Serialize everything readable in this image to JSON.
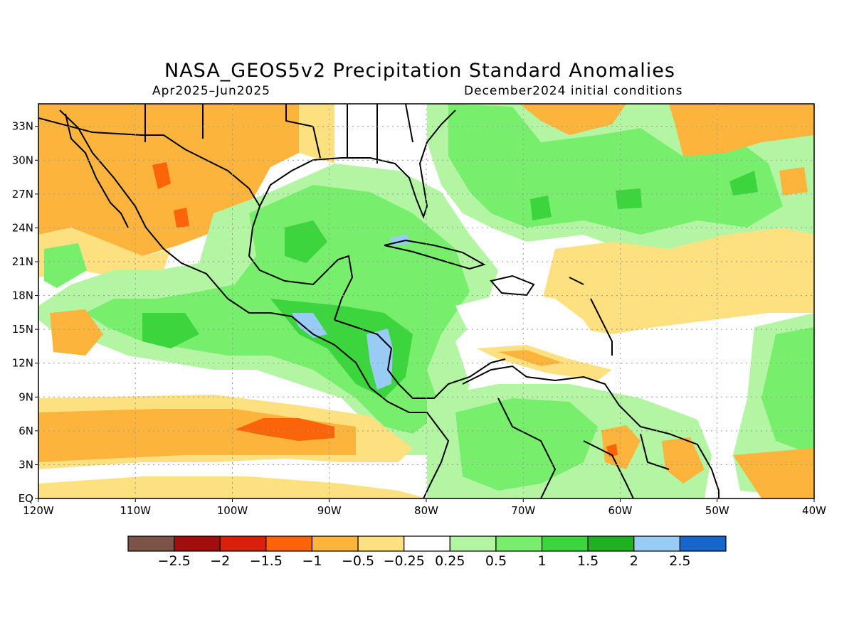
{
  "title": "NASA_GEOS5v2 Precipitation Standard Anomalies",
  "subtitle_left": "Apr2025–Jun2025",
  "subtitle_right": "December2024 initial conditions",
  "map": {
    "lon_labels": [
      "120W",
      "110W",
      "100W",
      "90W",
      "80W",
      "70W",
      "60W",
      "50W",
      "40W"
    ],
    "lat_labels": [
      "33N",
      "30N",
      "27N",
      "24N",
      "21N",
      "18N",
      "15N",
      "12N",
      "9N",
      "6N",
      "3N",
      "EQ"
    ],
    "lon_range": [
      -120,
      -40
    ],
    "lat_range": [
      0,
      35
    ],
    "grid": "dotted"
  },
  "colorbar": {
    "colors": [
      "#7b5347",
      "#a10e0e",
      "#d8200c",
      "#fb6408",
      "#fcb43c",
      "#fde07f",
      "#ffffff",
      "#b4f5a4",
      "#78ee6d",
      "#3cd53e",
      "#1fb11f",
      "#98ccf5",
      "#1666cc"
    ],
    "labels": [
      "−2.5",
      "−2",
      "−1.5",
      "−1",
      "−0.5",
      "−0.25",
      "0.25",
      "0.5",
      "1",
      "1.5",
      "2",
      "2.5"
    ]
  },
  "palette": {
    "neg_05": "#fde07f",
    "neg_1": "#fcb43c",
    "neg_15": "#fb6408",
    "pos_025": "#b4f5a4",
    "pos_05": "#78ee6d",
    "pos_1": "#3cd53e",
    "pos_15": "#1fb11f",
    "pos_2": "#98ccf5"
  }
}
